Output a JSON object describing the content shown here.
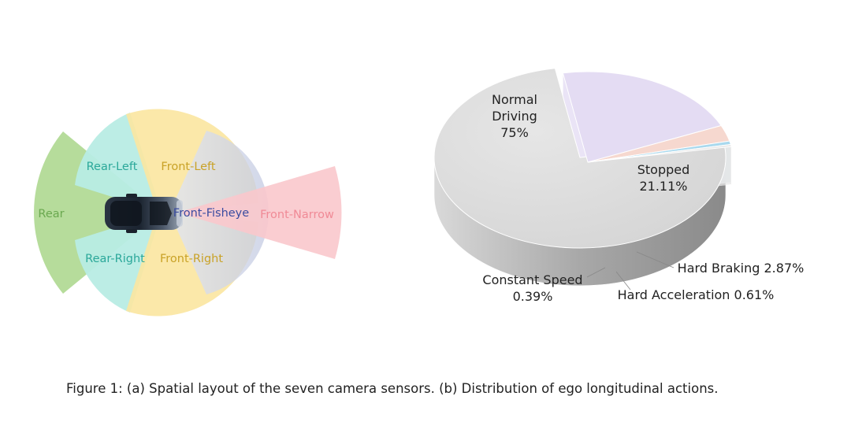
{
  "figure_a": {
    "zones": {
      "rear": "Rear",
      "rear_left": "Rear-Left",
      "rear_right": "Rear-Right",
      "front_left": "Front-Left",
      "front_right": "Front-Right",
      "front_fisheye": "Front-Fisheye",
      "front_narrow": "Front-Narrow"
    },
    "colors": {
      "rear": "#a9d68a",
      "side": "#b8ece4",
      "front_wide": "#fbe6a0",
      "fisheye": "#c8cfe0",
      "narrow": "#f9c8cc",
      "rear_text": "#6aa84f",
      "side_text": "#2ba89a",
      "front_text": "#c9a227",
      "fisheye_text": "#3b4ca0",
      "narrow_text": "#f08a96"
    }
  },
  "chart_data": {
    "type": "pie",
    "title": "",
    "slices": [
      {
        "label": "Normal Driving",
        "value": 75,
        "value_label": "75%",
        "color": "#dcdcdc"
      },
      {
        "label": "Stopped",
        "value": 21.11,
        "value_label": "21.11%",
        "color": "#e4dcf3"
      },
      {
        "label": "Hard Braking",
        "value": 2.87,
        "value_label": "2.87%",
        "color": "#f6d8cf"
      },
      {
        "label": "Hard Acceleration",
        "value": 0.61,
        "value_label": "0.61%",
        "color": "#a9d9ee"
      },
      {
        "label": "Constant Speed",
        "value": 0.39,
        "value_label": "0.39%",
        "color": "#e8e8e8"
      }
    ]
  },
  "caption": "Figure 1: (a) Spatial layout of the seven camera sensors. (b) Distribution of ego longitudinal actions."
}
